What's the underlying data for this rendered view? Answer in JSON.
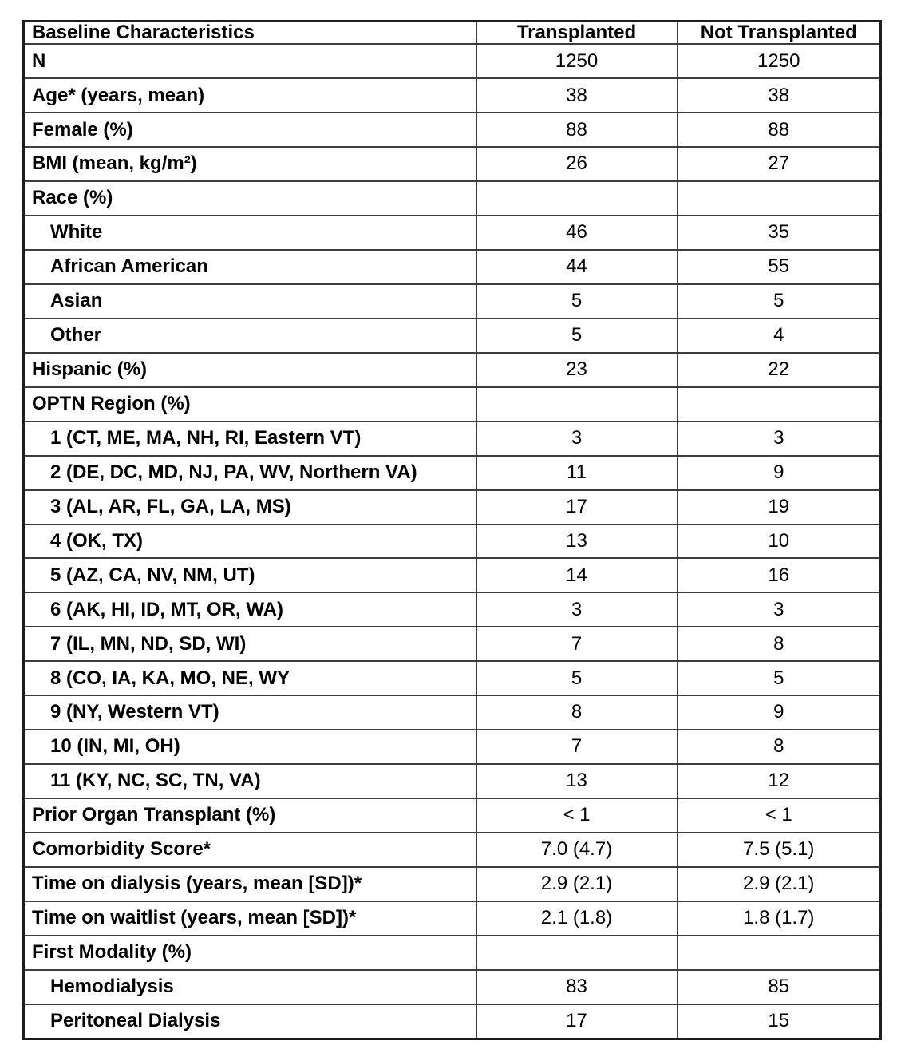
{
  "colors": {
    "border_inner": "#3d3d3d",
    "border_outer": "#1e1e1e",
    "text": "#000000",
    "background": "#ffffff"
  },
  "table": {
    "columns": [
      "Baseline Characteristics",
      "Transplanted",
      "Not Transplanted"
    ],
    "rows": [
      {
        "label": "N",
        "indent": 0,
        "t": "1250",
        "nt": "1250"
      },
      {
        "label": "Age* (years, mean)",
        "indent": 0,
        "t": "38",
        "nt": "38"
      },
      {
        "label": "Female (%)",
        "indent": 0,
        "t": "88",
        "nt": "88"
      },
      {
        "label": "BMI (mean, kg/m²)",
        "indent": 0,
        "t": "26",
        "nt": "27"
      },
      {
        "label": "Race (%)",
        "indent": 0,
        "t": "",
        "nt": ""
      },
      {
        "label": "White",
        "indent": 1,
        "t": "46",
        "nt": "35"
      },
      {
        "label": "African American",
        "indent": 1,
        "t": "44",
        "nt": "55"
      },
      {
        "label": "Asian",
        "indent": 1,
        "t": "5",
        "nt": "5"
      },
      {
        "label": "Other",
        "indent": 1,
        "t": "5",
        "nt": "4"
      },
      {
        "label": "Hispanic (%)",
        "indent": 0,
        "t": "23",
        "nt": "22"
      },
      {
        "label": "OPTN Region (%)",
        "indent": 0,
        "t": "",
        "nt": ""
      },
      {
        "label": "1 (CT, ME, MA, NH, RI, Eastern VT)",
        "indent": 1,
        "t": "3",
        "nt": "3"
      },
      {
        "label": "2 (DE, DC, MD, NJ, PA, WV, Northern VA)",
        "indent": 1,
        "t": "11",
        "nt": "9"
      },
      {
        "label": "3 (AL, AR, FL, GA, LA, MS)",
        "indent": 1,
        "t": "17",
        "nt": "19"
      },
      {
        "label": "4 (OK, TX)",
        "indent": 1,
        "t": "13",
        "nt": "10"
      },
      {
        "label": "5 (AZ, CA, NV, NM, UT)",
        "indent": 1,
        "t": "14",
        "nt": "16"
      },
      {
        "label": "6 (AK, HI, ID, MT, OR, WA)",
        "indent": 1,
        "t": "3",
        "nt": "3"
      },
      {
        "label": "7 (IL, MN, ND, SD, WI)",
        "indent": 1,
        "t": "7",
        "nt": "8"
      },
      {
        "label": "8 (CO, IA, KA, MO, NE, WY",
        "indent": 1,
        "t": "5",
        "nt": "5"
      },
      {
        "label": "9 (NY, Western VT)",
        "indent": 1,
        "t": "8",
        "nt": "9"
      },
      {
        "label": "10 (IN, MI, OH)",
        "indent": 1,
        "t": "7",
        "nt": "8"
      },
      {
        "label": "11 (KY, NC, SC, TN, VA)",
        "indent": 1,
        "t": "13",
        "nt": "12"
      },
      {
        "label": "Prior Organ Transplant (%)",
        "indent": 0,
        "t": "< 1",
        "nt": "< 1"
      },
      {
        "label": "Comorbidity Score*",
        "indent": 0,
        "t": "7.0 (4.7)",
        "nt": "7.5 (5.1)"
      },
      {
        "label": "Time on dialysis (years, mean [SD])*",
        "indent": 0,
        "t": "2.9 (2.1)",
        "nt": "2.9 (2.1)"
      },
      {
        "label": "Time on waitlist (years, mean [SD])*",
        "indent": 0,
        "t": "2.1 (1.8)",
        "nt": "1.8 (1.7)"
      },
      {
        "label": "First Modality (%)",
        "indent": 0,
        "t": "",
        "nt": ""
      },
      {
        "label": "Hemodialysis",
        "indent": 1,
        "t": "83",
        "nt": "85"
      },
      {
        "label": "Peritoneal Dialysis",
        "indent": 1,
        "t": "17",
        "nt": "15"
      }
    ]
  }
}
